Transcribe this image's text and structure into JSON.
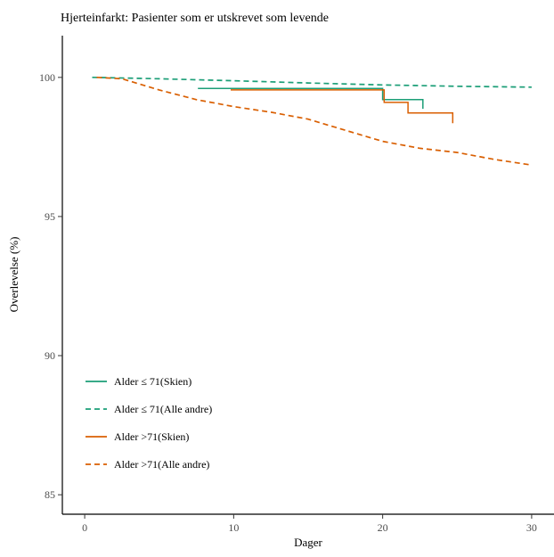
{
  "chart_data": {
    "type": "line",
    "title": "Hjerteinfarkt: Pasienter som er utskrevet som levende",
    "xlabel": "Dager",
    "ylabel": "Overlevelse (%)",
    "xlim": [
      -1.5,
      31.5
    ],
    "ylim": [
      84.3,
      101.5
    ],
    "x_ticks": [
      0,
      10,
      20,
      30
    ],
    "x_tick_labels": [
      "0",
      "10",
      "20",
      "30"
    ],
    "y_ticks": [
      85,
      90,
      95,
      100
    ],
    "y_tick_labels": [
      "85",
      "90",
      "95",
      "100"
    ],
    "grid": false,
    "legend_position": "bottom-left",
    "series": [
      {
        "name": "Alder ≤ 71(Skien)",
        "color": "#1b9e77",
        "line": "solid",
        "step": true,
        "x": [
          7.6,
          20.0,
          20.0,
          22.7,
          22.7
        ],
        "y": [
          99.6,
          99.6,
          99.2,
          99.2,
          98.87
        ]
      },
      {
        "name": "Alder ≤ 71(Alle andre)",
        "color": "#1b9e77",
        "line": "dashed",
        "step": false,
        "x": [
          0.5,
          5,
          10,
          15,
          20,
          25,
          30
        ],
        "y": [
          100.0,
          99.95,
          99.88,
          99.8,
          99.73,
          99.68,
          99.65
        ]
      },
      {
        "name": "Alder >71(Skien)",
        "color": "#d95f02",
        "line": "solid",
        "step": true,
        "x": [
          9.8,
          20.1,
          20.1,
          21.7,
          21.7,
          24.7,
          24.7
        ],
        "y": [
          99.55,
          99.55,
          99.1,
          99.1,
          98.72,
          98.72,
          98.35
        ]
      },
      {
        "name": "Alder >71(Alle andre)",
        "color": "#d95f02",
        "line": "dashed",
        "step": false,
        "x": [
          0.8,
          2.5,
          5,
          7.5,
          10,
          12.5,
          15,
          17.5,
          20,
          22.5,
          25,
          27.5,
          30
        ],
        "y": [
          100.0,
          99.95,
          99.55,
          99.2,
          98.95,
          98.75,
          98.5,
          98.1,
          97.7,
          97.45,
          97.3,
          97.05,
          96.85
        ]
      }
    ]
  }
}
